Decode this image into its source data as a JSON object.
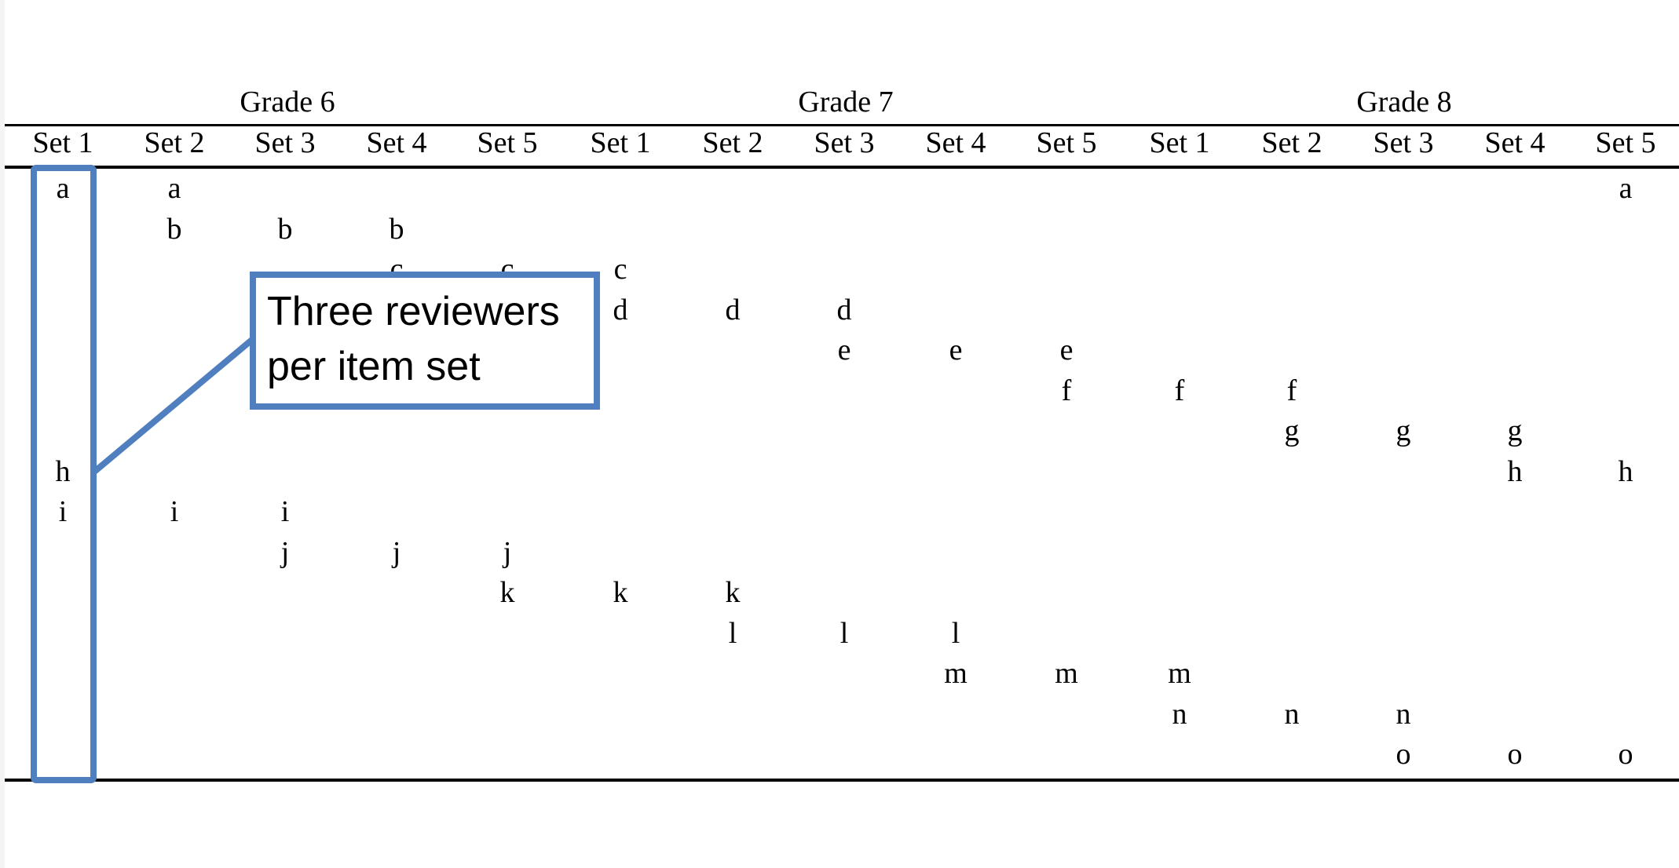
{
  "grades": [
    "Grade 6",
    "Grade 7",
    "Grade 8"
  ],
  "set_labels": [
    "Set 1",
    "Set 2",
    "Set 3",
    "Set 4",
    "Set 5",
    "Set 1",
    "Set 2",
    "Set 3",
    "Set 4",
    "Set 5",
    "Set 1",
    "Set 2",
    "Set 3",
    "Set 4",
    "Set 5"
  ],
  "rows": [
    {
      "item": "a",
      "columns": [
        0,
        1,
        14
      ]
    },
    {
      "item": "b",
      "columns": [
        1,
        2,
        3
      ]
    },
    {
      "item": "c",
      "columns": [
        3,
        4,
        5
      ]
    },
    {
      "item": "d",
      "columns": [
        5,
        6,
        7
      ]
    },
    {
      "item": "e",
      "columns": [
        7,
        8,
        9
      ]
    },
    {
      "item": "f",
      "columns": [
        9,
        10,
        11
      ]
    },
    {
      "item": "g",
      "columns": [
        11,
        12,
        13
      ]
    },
    {
      "item": "h",
      "columns": [
        0,
        13,
        14
      ]
    },
    {
      "item": "i",
      "columns": [
        0,
        1,
        2
      ]
    },
    {
      "item": "j",
      "columns": [
        2,
        3,
        4
      ]
    },
    {
      "item": "k",
      "columns": [
        4,
        5,
        6
      ]
    },
    {
      "item": "l",
      "columns": [
        6,
        7,
        8
      ]
    },
    {
      "item": "m",
      "columns": [
        8,
        9,
        10
      ]
    },
    {
      "item": "n",
      "columns": [
        10,
        11,
        12
      ]
    },
    {
      "item": "o",
      "columns": [
        12,
        13,
        14
      ]
    }
  ],
  "callout": {
    "line1": "Three reviewers",
    "line2": "per item set",
    "color": "#4f7fbf"
  }
}
